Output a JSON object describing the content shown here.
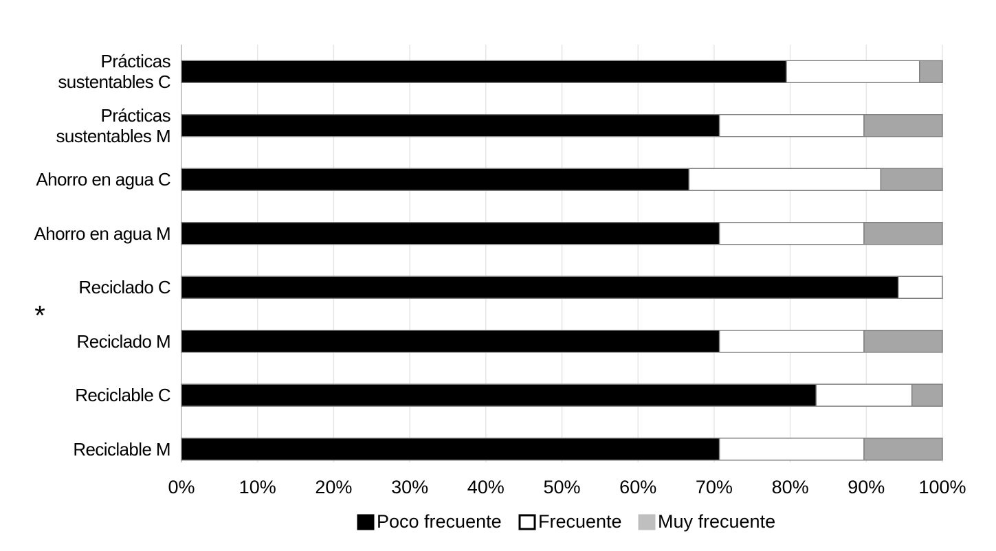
{
  "chart_data": {
    "type": "stacked_bar_horizontal",
    "annotation": "*",
    "categories": [
      "Prácticas sustentables C",
      "Prácticas sustentables M",
      "Ahorro en agua C",
      "Ahorro en agua M",
      "Reciclado C",
      "Reciclado M",
      "Reciclable C",
      "Reciclable M"
    ],
    "series": [
      {
        "name": "Poco frecuente",
        "color": "#000000",
        "values": [
          79.5,
          70.7,
          66.7,
          70.7,
          94.2,
          70.7,
          83.4,
          70.7
        ]
      },
      {
        "name": "Frecuente",
        "color": "#ffffff",
        "values": [
          17.5,
          19.0,
          25.2,
          19.0,
          5.8,
          19.0,
          12.6,
          19.0
        ]
      },
      {
        "name": "Muy frecuente",
        "color": "#a6a6a6",
        "values": [
          3.0,
          10.3,
          8.1,
          10.3,
          0,
          10.3,
          4.0,
          10.3
        ]
      }
    ],
    "xlim": [
      0,
      100
    ],
    "xticks": [
      {
        "value": 0,
        "label": "0%"
      },
      {
        "value": 10,
        "label": "10%"
      },
      {
        "value": 20,
        "label": "20%"
      },
      {
        "value": 30,
        "label": "30%"
      },
      {
        "value": 40,
        "label": "40%"
      },
      {
        "value": 50,
        "label": "50%"
      },
      {
        "value": 60,
        "label": "60%"
      },
      {
        "value": 70,
        "label": "70%"
      },
      {
        "value": 80,
        "label": "80%"
      },
      {
        "value": 90,
        "label": "90%"
      },
      {
        "value": 100,
        "label": "100%"
      }
    ],
    "grid": true,
    "legend": "bottom"
  }
}
